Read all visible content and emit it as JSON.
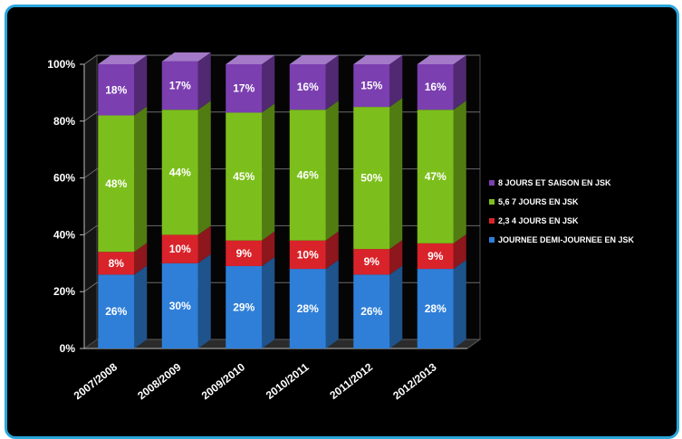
{
  "chart_data": {
    "type": "bar",
    "stacked": true,
    "percent_stacked": true,
    "three_d": true,
    "categories": [
      "2007/2008",
      "2008/2009",
      "2009/2010",
      "2010/2011",
      "2011/2012",
      "2012/2013"
    ],
    "series": [
      {
        "name": "JOURNEE DEMI-JOURNEE EN JSK",
        "values": [
          26,
          30,
          29,
          28,
          26,
          28
        ],
        "labels": [
          "26%",
          "30%",
          "29%",
          "28%",
          "26%",
          "28%"
        ],
        "color": "#2f7fd8"
      },
      {
        "name": "2,3 4 JOURS EN JSK",
        "values": [
          8,
          10,
          9,
          10,
          9,
          9
        ],
        "labels": [
          "8%",
          "10%",
          "9%",
          "10%",
          "9%",
          "9%"
        ],
        "color": "#d9232b"
      },
      {
        "name": "5,6 7 JOURS EN JSK",
        "values": [
          48,
          44,
          45,
          46,
          50,
          47
        ],
        "labels": [
          "48%",
          "44%",
          "45%",
          "46%",
          "50%",
          "47%"
        ],
        "color": "#7cbf1c"
      },
      {
        "name": "8 JOURS ET SAISON EN JSK",
        "values": [
          18,
          17,
          17,
          16,
          15,
          16
        ],
        "labels": [
          "18%",
          "17%",
          "17%",
          "16%",
          "15%",
          "16%"
        ],
        "color": "#7b3fb0"
      }
    ],
    "y_ticks": [
      "0%",
      "20%",
      "40%",
      "60%",
      "80%",
      "100%"
    ],
    "ylim": [
      0,
      100
    ],
    "grid": true,
    "legend_position": "right",
    "legend_order": [
      3,
      2,
      1,
      0
    ],
    "background": "#000000",
    "frame_color": "#2aa6dc"
  }
}
